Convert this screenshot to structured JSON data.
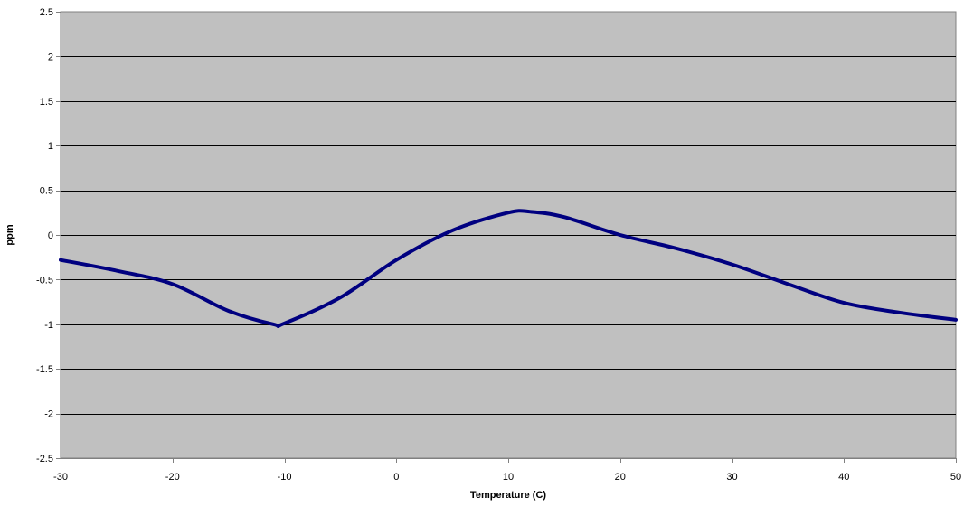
{
  "colors": {
    "plot_background": "#c0c0c0",
    "gridline": "#000000",
    "axis": "#808080",
    "series_line": "#000080"
  },
  "chart_data": {
    "type": "line",
    "title": "",
    "xlabel": "Temperature (C)",
    "ylabel": "ppm",
    "xlim": [
      -30,
      50
    ],
    "ylim": [
      -2.5,
      2.5
    ],
    "x_ticks": [
      -30,
      -20,
      -10,
      0,
      10,
      20,
      30,
      40,
      50
    ],
    "y_ticks": [
      -2.5,
      -2,
      -1.5,
      -1,
      -0.5,
      0,
      0.5,
      1,
      1.5,
      2,
      2.5
    ],
    "grid": "horizontal",
    "legend": "none",
    "series": [
      {
        "x": [
          -30,
          -25,
          -20,
          -15,
          -11,
          -10,
          -5,
          0,
          5,
          10,
          12,
          15,
          20,
          25,
          30,
          35,
          40,
          45,
          50
        ],
        "y": [
          -0.28,
          -0.4,
          -0.55,
          -0.85,
          -1.0,
          -0.99,
          -0.7,
          -0.28,
          0.05,
          0.25,
          0.26,
          0.2,
          0.0,
          -0.15,
          -0.33,
          -0.55,
          -0.76,
          -0.87,
          -0.95
        ]
      }
    ]
  }
}
